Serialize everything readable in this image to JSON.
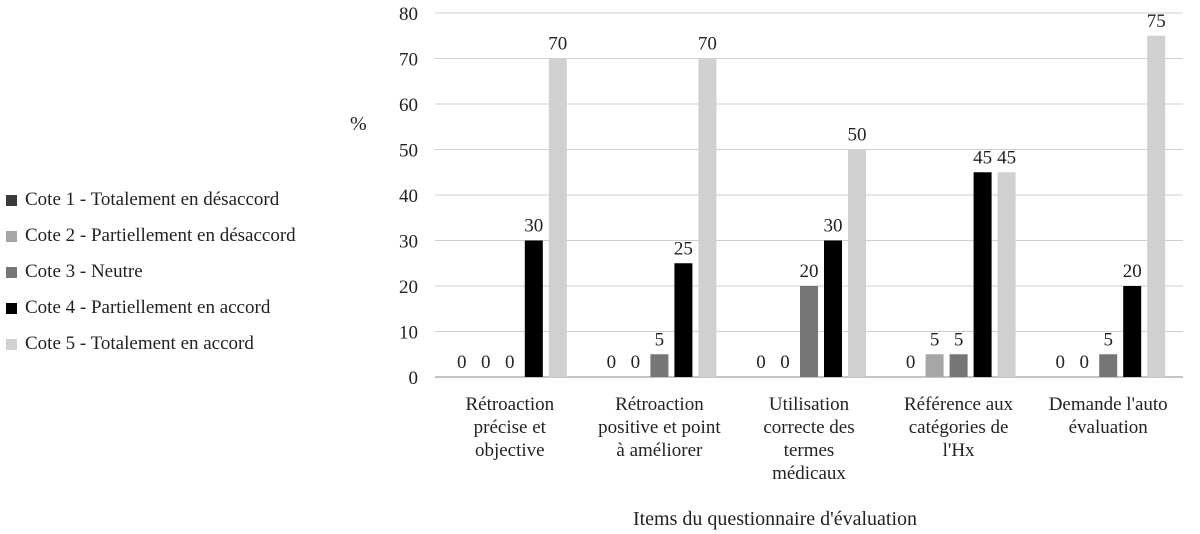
{
  "chart_data": {
    "type": "bar",
    "xlabel": "Items du questionnaire d'évaluation",
    "ylabel": "%",
    "ylim": [
      0,
      80
    ],
    "ytick_step": 10,
    "grid": true,
    "legend_position": "left",
    "categories": [
      "Rétroaction précise et objective",
      "Rétroaction positive et point à améliorer",
      "Utilisation correcte des termes médicaux",
      "Référence aux catégories de l'Hx",
      "Demande l'auto évaluation"
    ],
    "category_lines": [
      [
        "Rétroaction",
        "précise et",
        "objective"
      ],
      [
        "Rétroaction",
        "positive et point",
        "à améliorer"
      ],
      [
        "Utilisation",
        "correcte des",
        "termes",
        "médicaux"
      ],
      [
        "Référence aux",
        "catégories de",
        "l'Hx"
      ],
      [
        "Demande l'auto",
        "évaluation"
      ]
    ],
    "series": [
      {
        "name": "Cote 1 - Totalement en désaccord",
        "color": "#3a3a3a",
        "values": [
          0,
          0,
          0,
          0,
          0
        ]
      },
      {
        "name": "Cote 2 - Partiellement en désaccord",
        "color": "#a6a6a6",
        "values": [
          0,
          0,
          0,
          5,
          0
        ]
      },
      {
        "name": "Cote 3 - Neutre",
        "color": "#767676",
        "values": [
          0,
          5,
          20,
          5,
          5
        ]
      },
      {
        "name": "Cote 4 - Partiellement en accord",
        "color": "#000000",
        "values": [
          30,
          25,
          30,
          45,
          20
        ]
      },
      {
        "name": "Cote 5 - Totalement en accord",
        "color": "#d0d0d0",
        "values": [
          70,
          70,
          50,
          45,
          75
        ]
      }
    ]
  }
}
